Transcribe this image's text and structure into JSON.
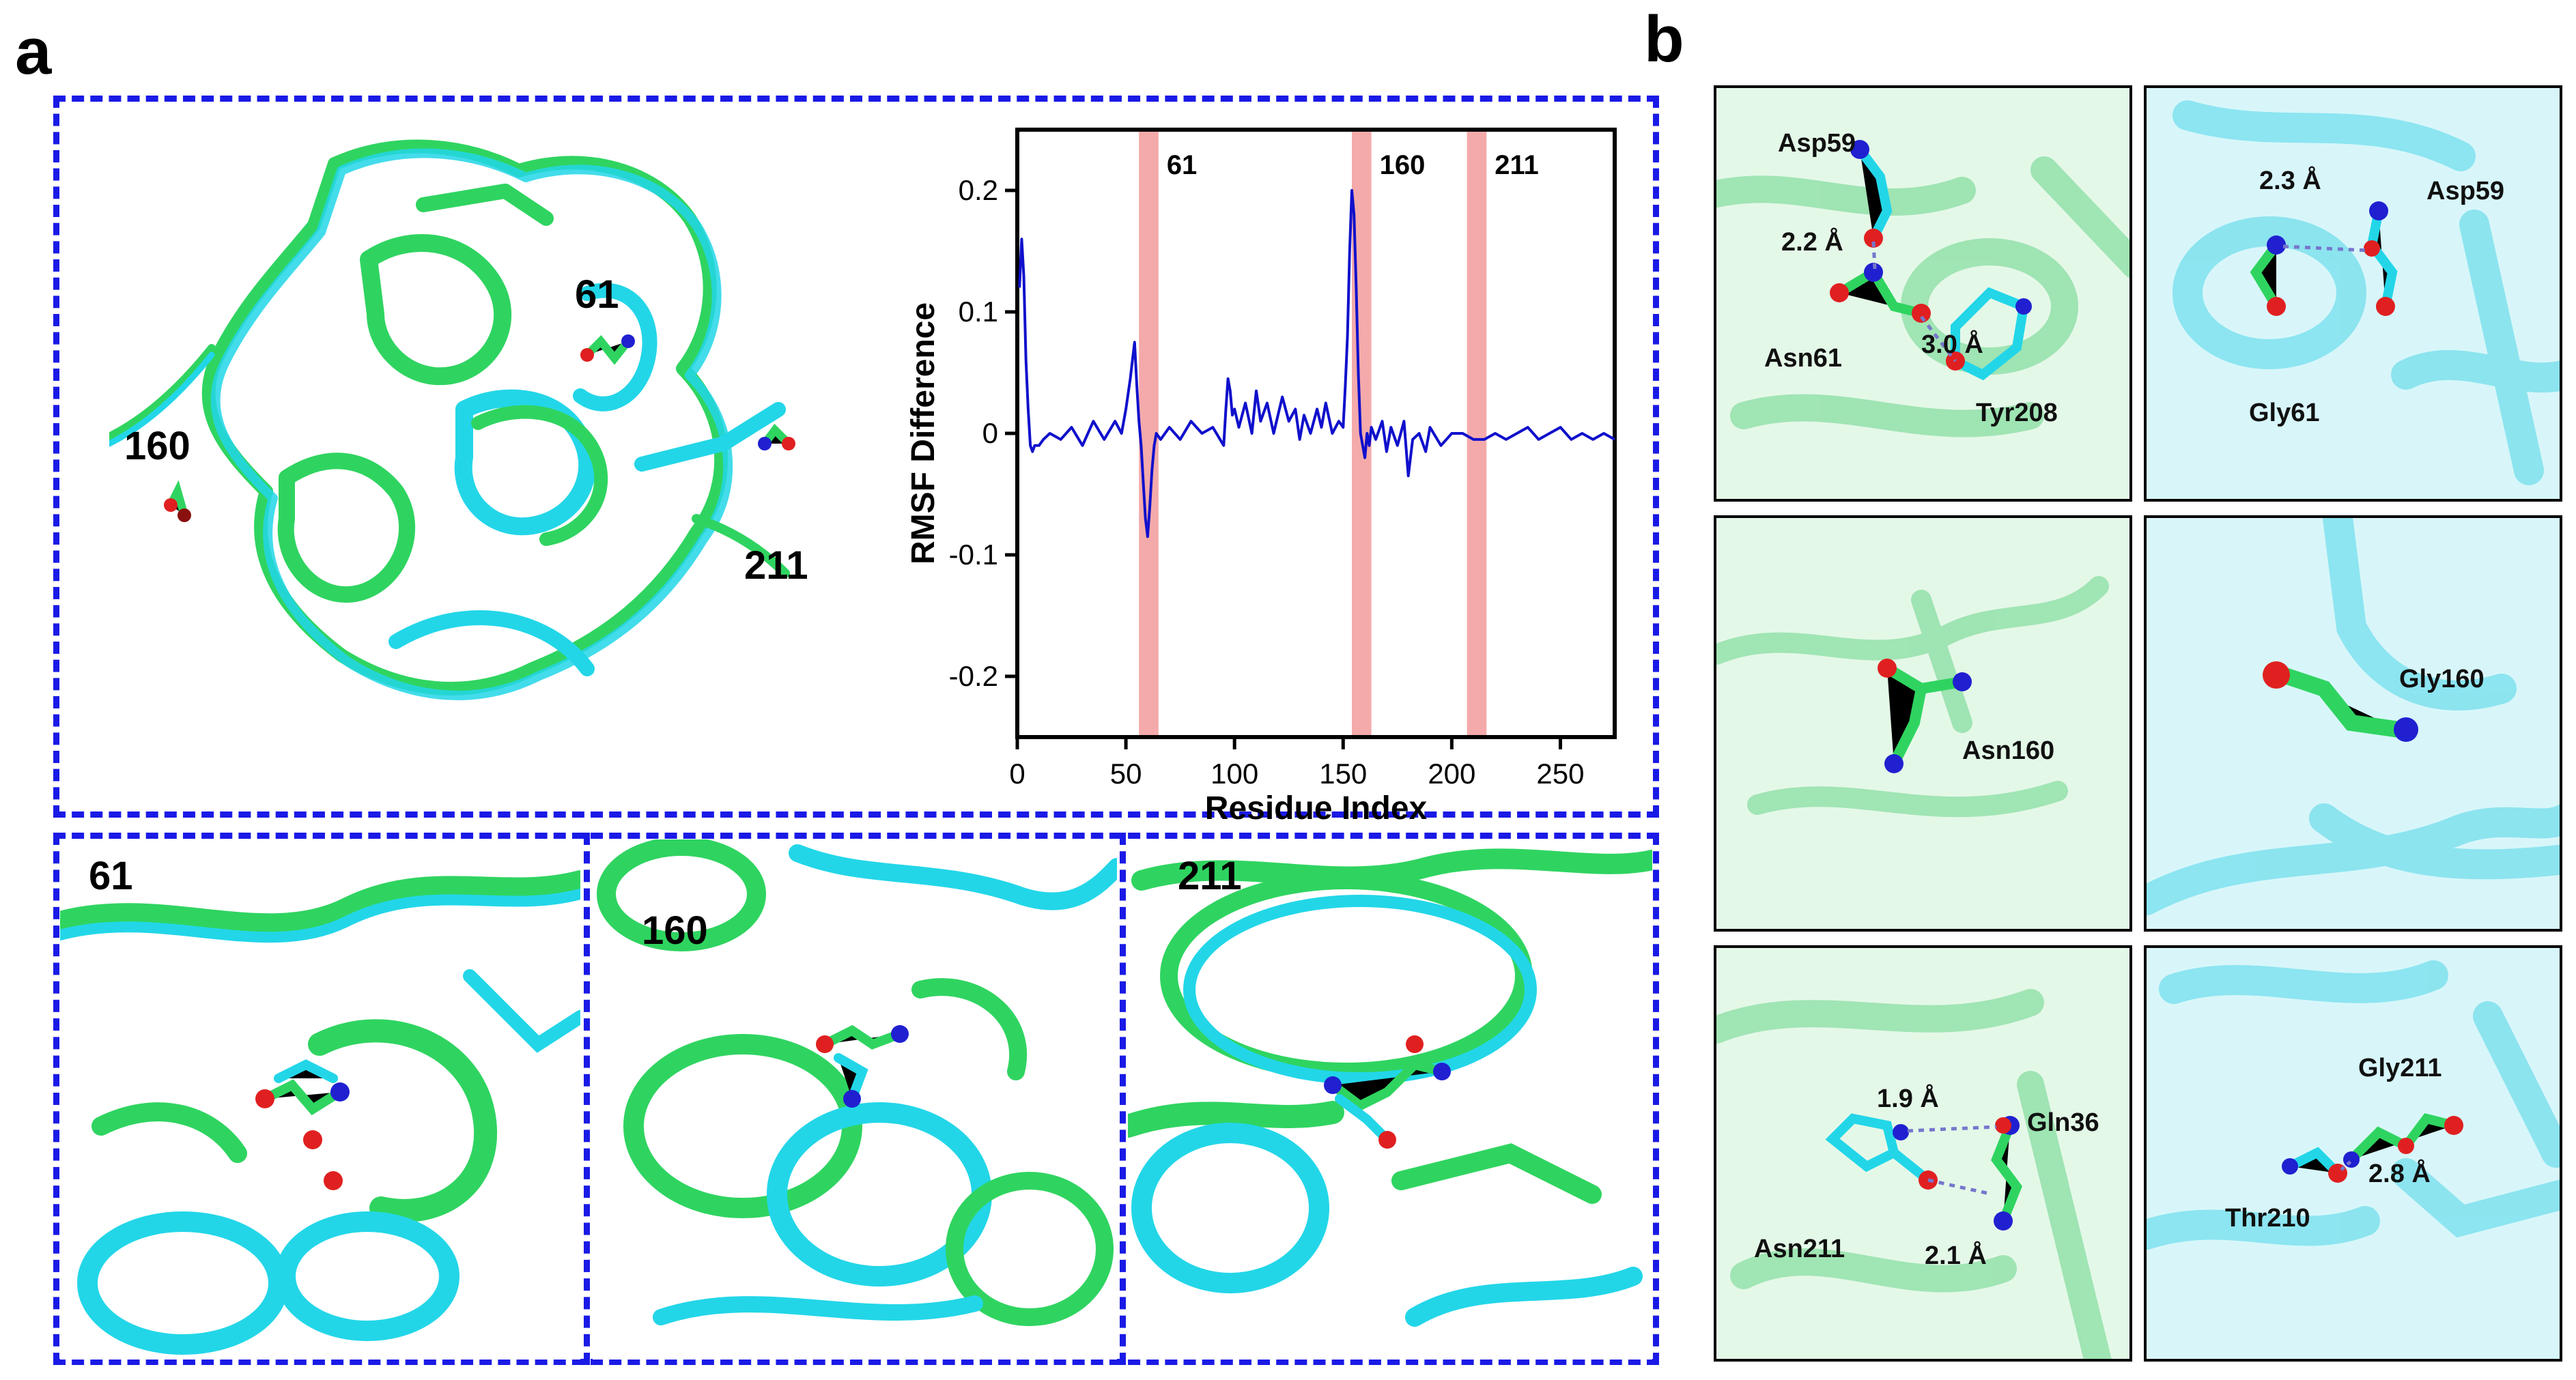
{
  "panel_labels": {
    "a": "a",
    "b": "b"
  },
  "overview": {
    "site_labels": [
      "61",
      "160",
      "211"
    ]
  },
  "zoom_views": [
    {
      "label": "61"
    },
    {
      "label": "160"
    },
    {
      "label": "211"
    }
  ],
  "chart_data": {
    "type": "line",
    "title": "",
    "xlabel": "Residue Index",
    "ylabel": "RMSF Difference",
    "xlim": [
      0,
      275
    ],
    "ylim": [
      -0.25,
      0.25
    ],
    "xticks": [
      "0",
      "50",
      "100",
      "150",
      "200",
      "250"
    ],
    "xtick_values": [
      0,
      50,
      100,
      150,
      200,
      250
    ],
    "yticks": [
      "0.2",
      "0.1",
      "0",
      "-0.1",
      "-0.2"
    ],
    "ytick_values": [
      0.2,
      0.1,
      0,
      -0.1,
      -0.2
    ],
    "line_color": "#1010cc",
    "highlight_color": "#f4aaaa",
    "highlights": [
      {
        "label": "61",
        "start": 56,
        "end": 65
      },
      {
        "label": "160",
        "start": 154,
        "end": 163
      },
      {
        "label": "211",
        "start": 207,
        "end": 216
      }
    ],
    "series": [
      {
        "name": "RMSF Difference",
        "x": [
          1,
          2,
          3,
          4,
          5,
          6,
          7,
          8,
          10,
          12,
          15,
          20,
          25,
          30,
          35,
          40,
          45,
          48,
          50,
          52,
          53,
          54,
          55,
          56,
          57,
          58,
          59,
          60,
          61,
          62,
          63,
          64,
          66,
          70,
          75,
          80,
          85,
          90,
          95,
          96,
          97,
          98,
          99,
          100,
          102,
          105,
          108,
          110,
          112,
          115,
          118,
          120,
          122,
          125,
          128,
          130,
          132,
          135,
          138,
          140,
          142,
          145,
          148,
          150,
          151,
          152,
          153,
          154,
          155,
          156,
          157,
          158,
          159,
          160,
          161,
          162,
          163,
          165,
          168,
          170,
          172,
          175,
          178,
          180,
          182,
          185,
          188,
          190,
          195,
          200,
          205,
          210,
          215,
          220,
          225,
          230,
          235,
          240,
          245,
          250,
          255,
          260,
          265,
          270,
          275
        ],
        "y": [
          0.12,
          0.16,
          0.13,
          0.06,
          0.02,
          -0.01,
          -0.015,
          -0.01,
          -0.01,
          -0.005,
          0.0,
          -0.005,
          0.005,
          -0.01,
          0.01,
          -0.005,
          0.01,
          0.0,
          0.02,
          0.045,
          0.06,
          0.075,
          0.04,
          0.01,
          -0.01,
          -0.04,
          -0.07,
          -0.085,
          -0.06,
          -0.03,
          -0.01,
          0.0,
          -0.005,
          0.005,
          -0.005,
          0.01,
          0.0,
          0.005,
          -0.01,
          0.02,
          0.045,
          0.035,
          0.015,
          0.02,
          0.005,
          0.025,
          0.0,
          0.035,
          0.01,
          0.025,
          0.0,
          0.015,
          0.03,
          0.01,
          0.02,
          -0.005,
          0.015,
          0.0,
          0.02,
          0.005,
          0.025,
          0.0,
          0.01,
          0.005,
          0.04,
          0.08,
          0.15,
          0.2,
          0.18,
          0.12,
          0.05,
          0.0,
          -0.01,
          -0.02,
          0.0,
          -0.01,
          0.005,
          -0.005,
          0.01,
          -0.015,
          0.005,
          -0.01,
          0.01,
          -0.035,
          -0.005,
          0.0,
          -0.015,
          0.005,
          -0.01,
          0.0,
          0.0,
          -0.005,
          -0.005,
          0.0,
          -0.005,
          0.0,
          0.005,
          -0.005,
          0.0,
          0.005,
          -0.005,
          0.0,
          -0.005,
          0.0,
          -0.005
        ]
      }
    ]
  },
  "detail_panels": [
    {
      "name": "wt-site-61",
      "labels": [
        "Asp59",
        "2.2 Å",
        "Asn61",
        "3.0 Å",
        "Tyr208"
      ]
    },
    {
      "name": "mut-site-61",
      "labels": [
        "2.3 Å",
        "Asp59",
        "Gly61"
      ]
    },
    {
      "name": "wt-site-160",
      "labels": [
        "Asn160"
      ]
    },
    {
      "name": "mut-site-160",
      "labels": [
        "Gly160"
      ]
    },
    {
      "name": "wt-site-211",
      "labels": [
        "1.9 Å",
        "Gln36",
        "Asn211",
        "2.1 Å"
      ]
    },
    {
      "name": "mut-site-211",
      "labels": [
        "Gly211",
        "Thr210",
        "2.8 Å"
      ]
    }
  ],
  "colors": {
    "wild_type": "#2fd460",
    "mutant": "#22d6e8",
    "dash": "#1a1ae6"
  }
}
